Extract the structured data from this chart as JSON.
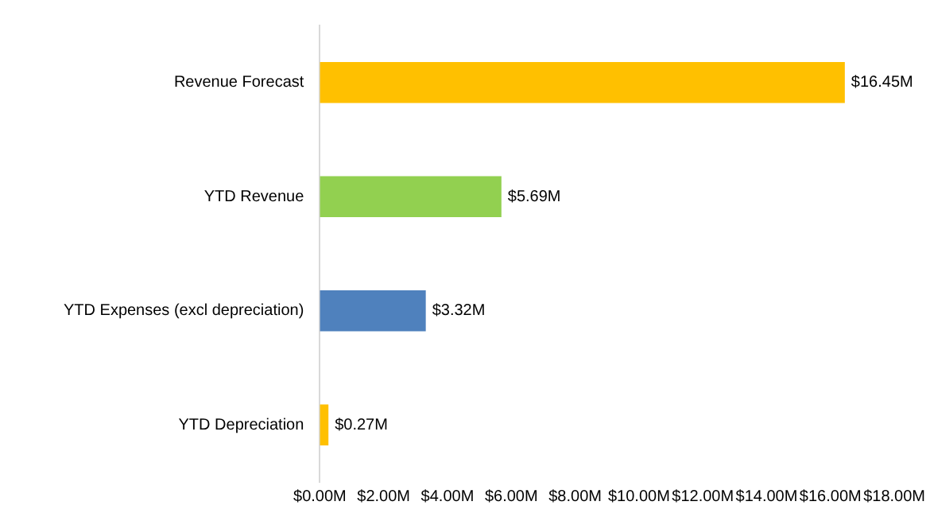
{
  "chart_data": {
    "type": "bar",
    "orientation": "horizontal",
    "categories": [
      "Revenue Forecast",
      "YTD Revenue",
      "YTD Expenses (excl depreciation)",
      "YTD Depreciation"
    ],
    "values": [
      16.45,
      5.69,
      3.32,
      0.27
    ],
    "colors": [
      "#ffc000",
      "#92d050",
      "#4f81bd",
      "#ffc000"
    ],
    "value_labels": [
      "$16.45M",
      "$5.69M",
      "$3.32M",
      "$0.27M"
    ],
    "xlim": [
      0,
      18
    ],
    "xticks": [
      {
        "value": 0,
        "label": "$0.00M"
      },
      {
        "value": 2,
        "label": "$2.00M"
      },
      {
        "value": 4,
        "label": "$4.00M"
      },
      {
        "value": 6,
        "label": "$6.00M"
      },
      {
        "value": 8,
        "label": "$8.00M"
      },
      {
        "value": 10,
        "label": "$10.00M"
      },
      {
        "value": 12,
        "label": "$12.00M"
      },
      {
        "value": 14,
        "label": "$14.00M"
      },
      {
        "value": 16,
        "label": "$16.00M"
      },
      {
        "value": 18,
        "label": "$18.00M"
      }
    ],
    "grid": false,
    "legend": false
  }
}
